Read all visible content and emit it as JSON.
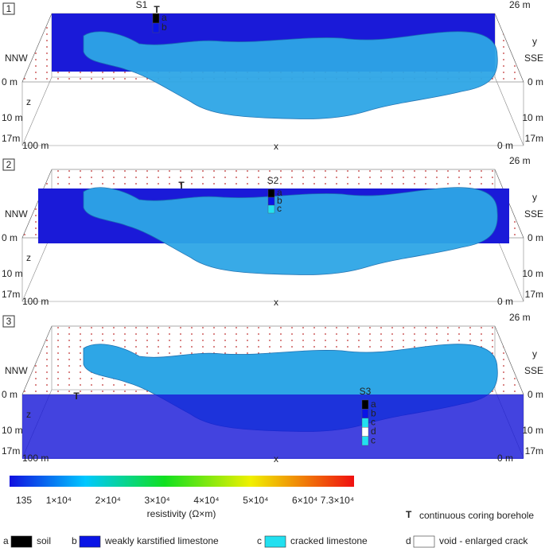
{
  "panels": [
    {
      "number": "1",
      "borehole": "S1",
      "layers": [
        "a",
        "b"
      ],
      "depth_top": "26 m",
      "y_label": "y",
      "left_direction": "NNW",
      "right_direction": "SSE",
      "left_zero": "0 m",
      "right_zero": "0 m",
      "z_label": "z",
      "left_mid": "10 m",
      "right_mid": "10 m",
      "left_bottom": "17m",
      "right_bottom": "17m",
      "x_start": "100 m",
      "x_label": "x",
      "x_end": "0 m"
    },
    {
      "number": "2",
      "borehole": "S2",
      "layers": [
        "a",
        "b",
        "c"
      ],
      "depth_top": "26 m",
      "y_label": "y",
      "left_direction": "NNW",
      "right_direction": "SSE",
      "left_zero": "0 m",
      "right_zero": "0 m",
      "z_label": "z",
      "left_mid": "10 m",
      "right_mid": "10 m",
      "left_bottom": "17m",
      "right_bottom": "17m",
      "x_start": "100 m",
      "x_label": "x",
      "x_end": "0 m"
    },
    {
      "number": "3",
      "borehole": "S3",
      "layers": [
        "a",
        "b",
        "c",
        "d",
        "c"
      ],
      "depth_top": "26 m",
      "y_label": "y",
      "left_direction": "NNW",
      "right_direction": "SSE",
      "left_zero": "0 m",
      "right_zero": "0 m",
      "z_label": "z",
      "left_mid": "10 m",
      "right_mid": "10 m",
      "left_bottom": "17m",
      "right_bottom": "17m",
      "x_start": "100 m",
      "x_label": "x",
      "x_end": "0 m"
    }
  ],
  "colorbar": {
    "ticks": [
      "135",
      "1×10⁴",
      "2×10⁴",
      "3×10⁴",
      "4×10⁴",
      "5×10⁴",
      "6×10⁴",
      "7.3×10⁴"
    ],
    "label": "resistivity (Ω×m)"
  },
  "borehole_legend": {
    "symbol": "T",
    "label": "continuous coring borehole"
  },
  "legend": [
    {
      "key": "a",
      "label": "soil",
      "color": "#000000"
    },
    {
      "key": "b",
      "label": "weakly karstified limestone",
      "color": "#0a14e6"
    },
    {
      "key": "c",
      "label": "cracked limestone",
      "color": "#22e0f0"
    },
    {
      "key": "d",
      "label": "void - enlarged crack",
      "color": "#ffffff"
    }
  ]
}
